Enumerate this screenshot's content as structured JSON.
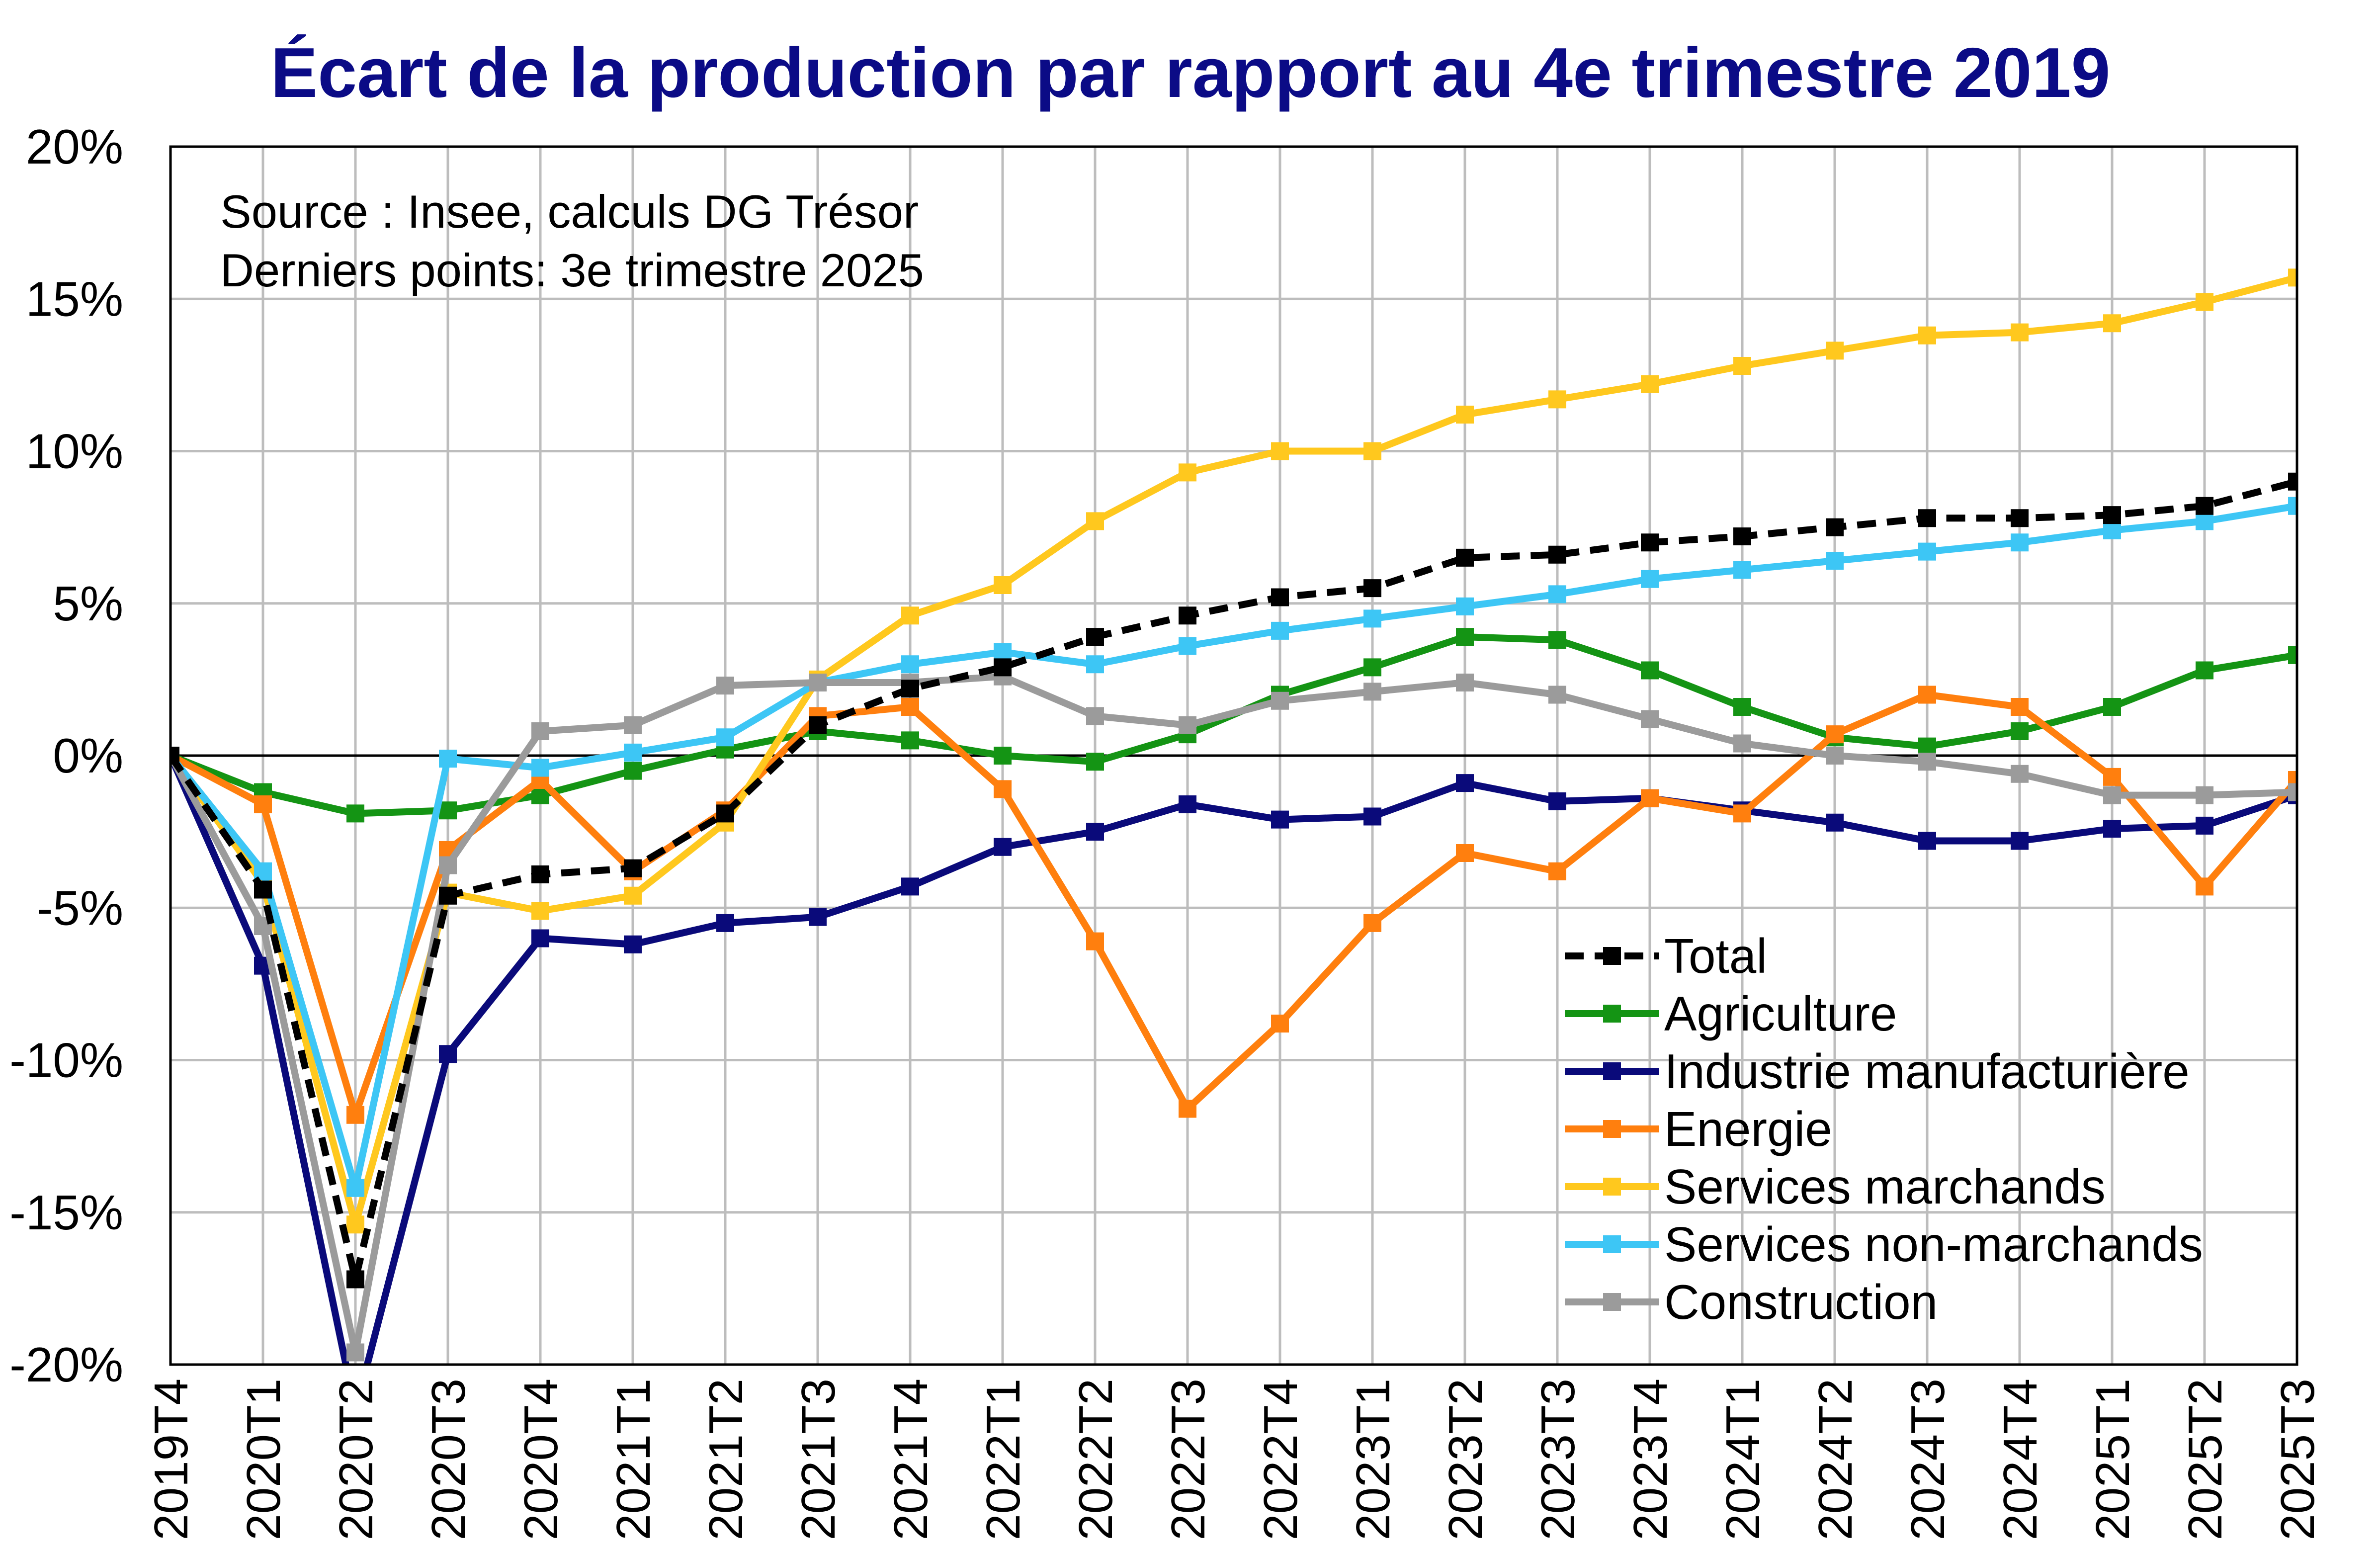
{
  "chart_data": {
    "type": "line",
    "title": "Écart de la production par rapport au 4e trimestre 2019",
    "title_color": "#0B0B86",
    "annotations": [
      "Source : Insee, calculs DG Trésor",
      "Derniers points: 3e trimestre 2025"
    ],
    "ylim": [
      -20,
      20
    ],
    "ytick_labels": [
      "20%",
      "15%",
      "10%",
      "5%",
      "0%",
      "-5%",
      "-10%",
      "-15%",
      "-20%"
    ],
    "yticks": [
      20,
      15,
      10,
      5,
      0,
      -5,
      -10,
      -15,
      -20
    ],
    "categories": [
      "2019T4",
      "2020T1",
      "2020T2",
      "2020T3",
      "2020T4",
      "2021T1",
      "2021T2",
      "2021T3",
      "2021T4",
      "2022T1",
      "2022T2",
      "2022T3",
      "2022T4",
      "2023T1",
      "2023T2",
      "2023T3",
      "2023T4",
      "2024T1",
      "2024T2",
      "2024T3",
      "2024T4",
      "2025T1",
      "2025T2",
      "2025T3"
    ],
    "grid": true,
    "legend_position": "bottom-right",
    "series": [
      {
        "name": "Total",
        "color": "#000000",
        "dashed": true,
        "values": [
          0,
          -4.4,
          -17.2,
          -4.6,
          -3.9,
          -3.7,
          -1.9,
          1.0,
          2.2,
          2.9,
          3.9,
          4.6,
          5.2,
          5.5,
          6.5,
          6.6,
          7.0,
          7.2,
          7.5,
          7.8,
          7.8,
          7.9,
          8.2,
          9.0
        ]
      },
      {
        "name": "Agriculture",
        "color": "#149414",
        "dashed": false,
        "values": [
          0,
          -1.2,
          -1.9,
          -1.8,
          -1.3,
          -0.5,
          0.2,
          0.8,
          0.5,
          0.0,
          -0.2,
          0.7,
          2.0,
          2.9,
          3.9,
          3.8,
          2.8,
          1.6,
          0.6,
          0.3,
          0.8,
          1.6,
          2.8,
          3.3
        ]
      },
      {
        "name": "Industrie manufacturière",
        "color": "#0A0A7A",
        "dashed": false,
        "values": [
          0,
          -6.9,
          -21.5,
          -9.8,
          -6.0,
          -6.2,
          -5.5,
          -5.3,
          -4.3,
          -3.0,
          -2.5,
          -1.6,
          -2.1,
          -2.0,
          -0.9,
          -1.5,
          -1.4,
          -1.8,
          -2.2,
          -2.8,
          -2.8,
          -2.4,
          -2.3,
          -1.3
        ]
      },
      {
        "name": "Energie",
        "color": "#FF7F0E",
        "dashed": false,
        "values": [
          0,
          -1.6,
          -11.8,
          -3.1,
          -0.8,
          -3.8,
          -1.8,
          1.3,
          1.6,
          -1.1,
          -6.1,
          -11.6,
          -8.8,
          -5.5,
          -3.2,
          -3.8,
          -1.4,
          -1.9,
          0.7,
          2.0,
          1.6,
          -0.7,
          -4.3,
          -0.8
        ]
      },
      {
        "name": "Services marchands",
        "color": "#FFC81E",
        "dashed": false,
        "values": [
          0,
          -4.2,
          -15.4,
          -4.5,
          -5.1,
          -4.6,
          -2.2,
          2.5,
          4.6,
          5.6,
          7.7,
          9.3,
          10.0,
          10.0,
          11.2,
          11.7,
          12.2,
          12.8,
          13.3,
          13.8,
          13.9,
          14.2,
          14.9,
          15.7
        ]
      },
      {
        "name": "Services non-marchands",
        "color": "#3DC6F5",
        "dashed": false,
        "values": [
          0,
          -3.8,
          -14.2,
          -0.1,
          -0.4,
          0.1,
          0.6,
          2.4,
          3.0,
          3.4,
          3.0,
          3.6,
          4.1,
          4.5,
          4.9,
          5.3,
          5.8,
          6.1,
          6.4,
          6.7,
          7.0,
          7.4,
          7.7,
          8.2
        ]
      },
      {
        "name": "Construction",
        "color": "#9B9B9B",
        "dashed": false,
        "values": [
          0,
          -5.6,
          -19.6,
          -3.6,
          0.8,
          1.0,
          2.3,
          2.4,
          2.4,
          2.6,
          1.3,
          1.0,
          1.8,
          2.1,
          2.4,
          2.0,
          1.2,
          0.4,
          0.0,
          -0.2,
          -0.6,
          -1.3,
          -1.3,
          -1.2
        ]
      }
    ]
  }
}
